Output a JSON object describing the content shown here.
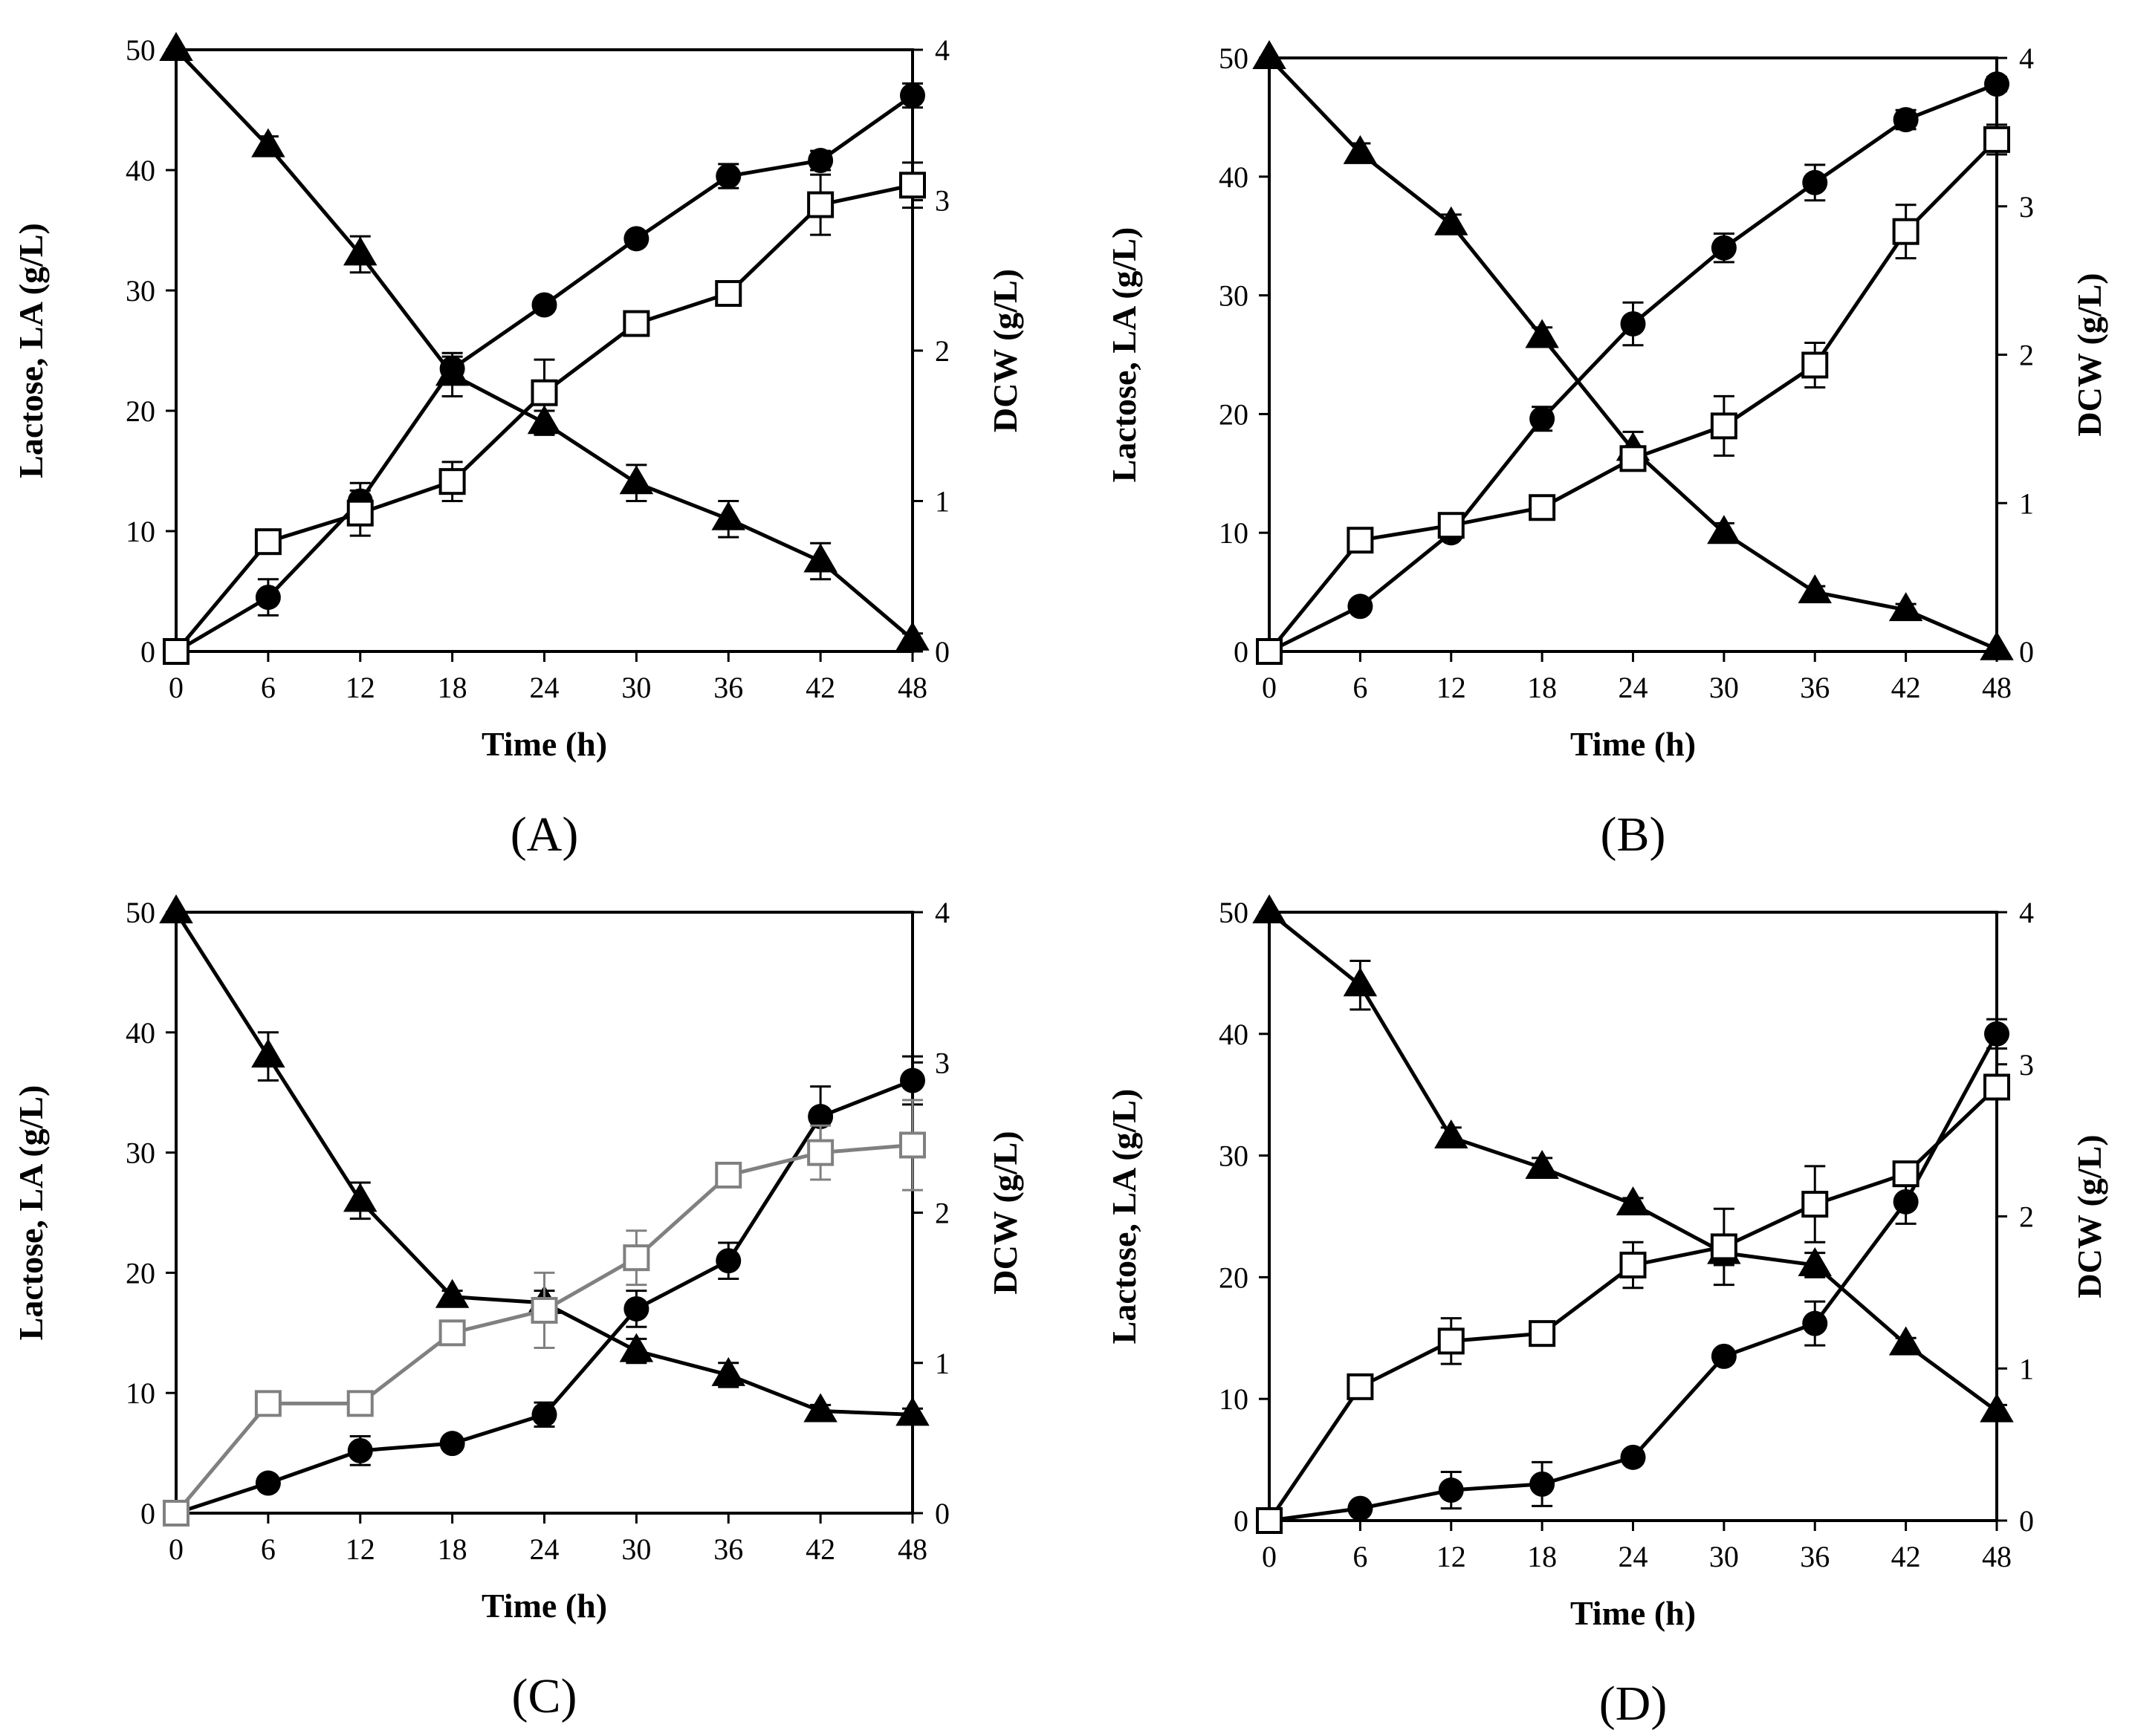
{
  "figure": {
    "panels_description": "Four time-course panels (A–D)",
    "colors": {
      "axis": "#000000",
      "line": "#000000",
      "line_grey": "#808080",
      "fill_open": "#ffffff"
    },
    "legend_symbols": {
      "lactose": "filled-triangle",
      "lactic_acid": "filled-circle",
      "dcw": "open-square"
    }
  },
  "chart_data": [
    {
      "panel": "(A)",
      "type": "line",
      "xlabel": "Time (h)",
      "ylabel": "Lactose, LA (g/L)",
      "y2label": "DCW (g/L)",
      "xlim": [
        0,
        48
      ],
      "ylim": [
        0,
        50
      ],
      "y2lim": [
        0,
        4
      ],
      "xticks": [
        0,
        6,
        12,
        18,
        24,
        30,
        36,
        42,
        48
      ],
      "yticks": [
        0,
        10,
        20,
        30,
        40,
        50
      ],
      "y2ticks": [
        0,
        1,
        2,
        3,
        4
      ],
      "x": [
        0,
        6,
        12,
        18,
        24,
        30,
        36,
        42,
        48
      ],
      "series": [
        {
          "name": "Lactose",
          "marker": "triangle",
          "axis": "left",
          "color": "#000000",
          "values": [
            50,
            42,
            33,
            23,
            19,
            14,
            11,
            7.5,
            1
          ],
          "errors": [
            0,
            0.8,
            1.5,
            1.8,
            1.0,
            1.5,
            1.5,
            1.5,
            0.5
          ]
        },
        {
          "name": "LA",
          "marker": "circle",
          "axis": "left",
          "color": "#000000",
          "values": [
            0,
            4.5,
            12.5,
            23.5,
            28.8,
            34.3,
            39.5,
            40.8,
            46.2
          ],
          "errors": [
            0,
            1.5,
            1.5,
            1.0,
            0.5,
            0.5,
            1.0,
            0.8,
            1.0
          ]
        },
        {
          "name": "DCW",
          "marker": "square",
          "axis": "right",
          "color": "#000000",
          "values": [
            0,
            0.73,
            0.92,
            1.13,
            1.72,
            2.18,
            2.38,
            2.97,
            3.1
          ],
          "errors": [
            0,
            0.06,
            0.15,
            0.13,
            0.22,
            0.06,
            0.08,
            0.2,
            0.15
          ]
        }
      ]
    },
    {
      "panel": "(B)",
      "type": "line",
      "xlabel": "Time (h)",
      "ylabel": "Lactose, LA (g/L)",
      "y2label": "DCW (g/L)",
      "xlim": [
        0,
        48
      ],
      "ylim": [
        0,
        50
      ],
      "y2lim": [
        0,
        4
      ],
      "xticks": [
        0,
        6,
        12,
        18,
        24,
        30,
        36,
        42,
        48
      ],
      "yticks": [
        0,
        10,
        20,
        30,
        40,
        50
      ],
      "y2ticks": [
        0,
        1,
        2,
        3,
        4
      ],
      "x": [
        0,
        6,
        12,
        18,
        24,
        30,
        36,
        42,
        48
      ],
      "series": [
        {
          "name": "Lactose",
          "marker": "triangle",
          "axis": "left",
          "color": "#000000",
          "values": [
            50,
            42,
            36,
            26.5,
            17,
            10,
            5,
            3.5,
            0.2
          ],
          "errors": [
            0,
            0.8,
            0.8,
            0.8,
            1.5,
            0.8,
            0.5,
            0.5,
            0
          ]
        },
        {
          "name": "LA",
          "marker": "circle",
          "axis": "left",
          "color": "#000000",
          "values": [
            0,
            3.8,
            10,
            19.6,
            27.6,
            34,
            39.5,
            44.8,
            47.8
          ],
          "errors": [
            0,
            0.5,
            0.5,
            1.0,
            1.8,
            1.2,
            1.5,
            0.8,
            0.6
          ]
        },
        {
          "name": "DCW",
          "marker": "square",
          "axis": "right",
          "color": "#000000",
          "values": [
            0,
            0.75,
            0.85,
            0.97,
            1.3,
            1.52,
            1.93,
            2.83,
            3.45
          ],
          "errors": [
            0,
            0.08,
            0.05,
            0.04,
            0.06,
            0.2,
            0.15,
            0.18,
            0.1
          ]
        }
      ]
    },
    {
      "panel": "(C)",
      "type": "line",
      "xlabel": "Time (h)",
      "ylabel": "Lactose, LA (g/L)",
      "y2label": "DCW (g/L)",
      "xlim": [
        0,
        48
      ],
      "ylim": [
        0,
        50
      ],
      "y2lim": [
        0,
        4
      ],
      "xticks": [
        0,
        6,
        12,
        18,
        24,
        30,
        36,
        42,
        48
      ],
      "yticks": [
        0,
        10,
        20,
        30,
        40,
        50
      ],
      "y2ticks": [
        0,
        1,
        2,
        3,
        4
      ],
      "x": [
        0,
        6,
        12,
        18,
        24,
        30,
        36,
        42,
        48
      ],
      "series": [
        {
          "name": "Lactose",
          "marker": "triangle",
          "axis": "left",
          "color": "#000000",
          "values": [
            50,
            38,
            26,
            18,
            17.5,
            13.5,
            11.5,
            8.5,
            8.2
          ],
          "errors": [
            0,
            2.0,
            1.5,
            0.5,
            1.0,
            1.0,
            1.0,
            0.5,
            0.5
          ]
        },
        {
          "name": "LA",
          "marker": "circle",
          "axis": "left",
          "color": "#000000",
          "values": [
            0,
            2.5,
            5.2,
            5.8,
            8.2,
            17,
            21,
            33,
            36
          ],
          "errors": [
            0,
            0.5,
            1.2,
            0.5,
            1.0,
            1.5,
            1.5,
            2.5,
            2.0
          ]
        },
        {
          "name": "DCW",
          "marker": "square",
          "axis": "right",
          "color": "#808080",
          "values": [
            0,
            0.73,
            0.73,
            1.2,
            1.35,
            1.7,
            2.25,
            2.4,
            2.45
          ],
          "errors": [
            0,
            0.03,
            0.03,
            0.05,
            0.25,
            0.18,
            0.04,
            0.18,
            0.3
          ]
        }
      ]
    },
    {
      "panel": "(D)",
      "type": "line",
      "xlabel": "Time (h)",
      "ylabel": "Lactose, LA (g/L)",
      "y2label": "DCW (g/L)",
      "xlim": [
        0,
        48
      ],
      "ylim": [
        0,
        50
      ],
      "y2lim": [
        0,
        4
      ],
      "xticks": [
        0,
        6,
        12,
        18,
        24,
        30,
        36,
        42,
        48
      ],
      "yticks": [
        0,
        10,
        20,
        30,
        40,
        50
      ],
      "y2ticks": [
        0,
        1,
        2,
        3,
        4
      ],
      "x": [
        0,
        6,
        12,
        18,
        24,
        30,
        36,
        42,
        48
      ],
      "series": [
        {
          "name": "Lactose",
          "marker": "triangle",
          "axis": "left",
          "color": "#000000",
          "values": [
            50,
            44,
            31.5,
            29,
            26,
            22,
            21,
            14.5,
            9
          ],
          "errors": [
            0,
            2.0,
            0.8,
            0.8,
            0.5,
            1.0,
            1.0,
            0.5,
            0.5
          ]
        },
        {
          "name": "LA",
          "marker": "circle",
          "axis": "left",
          "color": "#000000",
          "values": [
            0,
            1,
            2.5,
            3,
            5.2,
            13.5,
            16.2,
            26.2,
            40
          ],
          "errors": [
            0,
            0.3,
            1.5,
            1.8,
            0.5,
            0.5,
            1.8,
            1.8,
            1.2
          ]
        },
        {
          "name": "DCW",
          "marker": "square",
          "axis": "right",
          "color": "#000000",
          "values": [
            0,
            0.88,
            1.18,
            1.23,
            1.68,
            1.8,
            2.08,
            2.28,
            2.85
          ],
          "errors": [
            0,
            0.04,
            0.15,
            0.04,
            0.15,
            0.25,
            0.25,
            0.04,
            0.08
          ]
        }
      ]
    }
  ]
}
